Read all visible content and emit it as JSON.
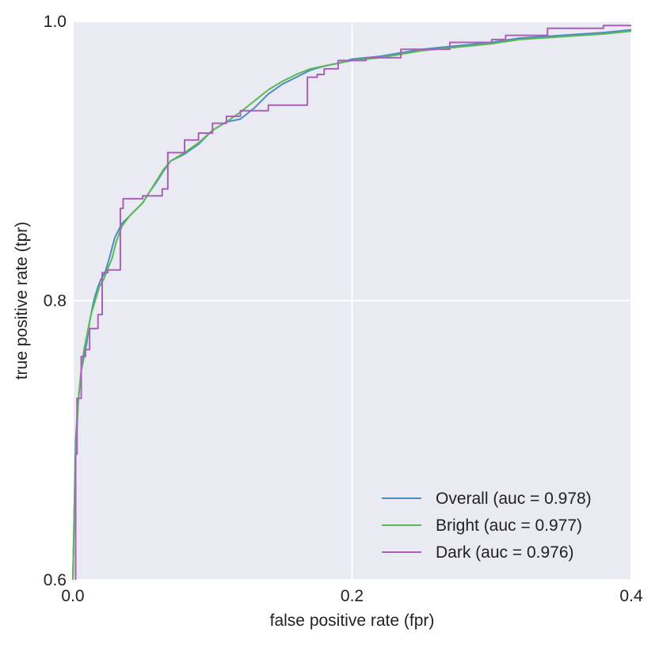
{
  "chart_data": {
    "type": "line",
    "title": "",
    "xlabel": "false positive rate (fpr)",
    "ylabel": "true positive rate (tpr)",
    "xlim": [
      0.0,
      0.4
    ],
    "ylim": [
      0.6,
      1.0
    ],
    "xticks": [
      "0.0",
      "0.2",
      "0.4"
    ],
    "yticks": [
      "0.6",
      "0.8",
      "1.0"
    ],
    "grid": true,
    "background": "#eaeaf2",
    "grid_color": "#ffffff",
    "legend_position": "lower-right",
    "series": [
      {
        "name": "Overall (auc = 0.978)",
        "color": "#4c8cc2",
        "points": [
          [
            0.0,
            0.6
          ],
          [
            0.001,
            0.65
          ],
          [
            0.002,
            0.7
          ],
          [
            0.004,
            0.73
          ],
          [
            0.006,
            0.75
          ],
          [
            0.008,
            0.76
          ],
          [
            0.01,
            0.77
          ],
          [
            0.012,
            0.785
          ],
          [
            0.015,
            0.8
          ],
          [
            0.018,
            0.81
          ],
          [
            0.02,
            0.815
          ],
          [
            0.023,
            0.82
          ],
          [
            0.026,
            0.83
          ],
          [
            0.03,
            0.845
          ],
          [
            0.035,
            0.855
          ],
          [
            0.04,
            0.86
          ],
          [
            0.045,
            0.865
          ],
          [
            0.05,
            0.87
          ],
          [
            0.055,
            0.878
          ],
          [
            0.06,
            0.885
          ],
          [
            0.065,
            0.893
          ],
          [
            0.07,
            0.9
          ],
          [
            0.08,
            0.905
          ],
          [
            0.09,
            0.912
          ],
          [
            0.1,
            0.922
          ],
          [
            0.11,
            0.928
          ],
          [
            0.12,
            0.93
          ],
          [
            0.13,
            0.938
          ],
          [
            0.14,
            0.948
          ],
          [
            0.15,
            0.955
          ],
          [
            0.16,
            0.96
          ],
          [
            0.17,
            0.965
          ],
          [
            0.18,
            0.968
          ],
          [
            0.19,
            0.97
          ],
          [
            0.2,
            0.973
          ],
          [
            0.22,
            0.975
          ],
          [
            0.25,
            0.98
          ],
          [
            0.28,
            0.983
          ],
          [
            0.3,
            0.985
          ],
          [
            0.32,
            0.988
          ],
          [
            0.35,
            0.99
          ],
          [
            0.38,
            0.992
          ],
          [
            0.4,
            0.994
          ]
        ]
      },
      {
        "name": "Bright (auc = 0.977)",
        "color": "#5ab954",
        "points": [
          [
            0.0,
            0.6
          ],
          [
            0.001,
            0.65
          ],
          [
            0.002,
            0.69
          ],
          [
            0.004,
            0.73
          ],
          [
            0.006,
            0.75
          ],
          [
            0.008,
            0.765
          ],
          [
            0.01,
            0.775
          ],
          [
            0.013,
            0.79
          ],
          [
            0.016,
            0.8
          ],
          [
            0.019,
            0.81
          ],
          [
            0.022,
            0.815
          ],
          [
            0.025,
            0.823
          ],
          [
            0.028,
            0.83
          ],
          [
            0.031,
            0.842
          ],
          [
            0.035,
            0.853
          ],
          [
            0.04,
            0.86
          ],
          [
            0.045,
            0.865
          ],
          [
            0.05,
            0.87
          ],
          [
            0.055,
            0.878
          ],
          [
            0.06,
            0.886
          ],
          [
            0.065,
            0.894
          ],
          [
            0.07,
            0.9
          ],
          [
            0.08,
            0.906
          ],
          [
            0.09,
            0.913
          ],
          [
            0.1,
            0.922
          ],
          [
            0.11,
            0.928
          ],
          [
            0.12,
            0.935
          ],
          [
            0.13,
            0.943
          ],
          [
            0.14,
            0.951
          ],
          [
            0.15,
            0.957
          ],
          [
            0.16,
            0.962
          ],
          [
            0.17,
            0.966
          ],
          [
            0.18,
            0.968
          ],
          [
            0.19,
            0.97
          ],
          [
            0.2,
            0.972
          ],
          [
            0.22,
            0.974
          ],
          [
            0.25,
            0.979
          ],
          [
            0.28,
            0.982
          ],
          [
            0.3,
            0.984
          ],
          [
            0.32,
            0.987
          ],
          [
            0.35,
            0.989
          ],
          [
            0.38,
            0.991
          ],
          [
            0.4,
            0.993
          ]
        ]
      },
      {
        "name": "Dark (auc = 0.976)",
        "color": "#a860b8",
        "points": [
          [
            0.002,
            0.6
          ],
          [
            0.002,
            0.69
          ],
          [
            0.003,
            0.69
          ],
          [
            0.003,
            0.73
          ],
          [
            0.006,
            0.73
          ],
          [
            0.006,
            0.76
          ],
          [
            0.009,
            0.76
          ],
          [
            0.009,
            0.765
          ],
          [
            0.012,
            0.765
          ],
          [
            0.012,
            0.78
          ],
          [
            0.018,
            0.78
          ],
          [
            0.018,
            0.79
          ],
          [
            0.021,
            0.79
          ],
          [
            0.021,
            0.82
          ],
          [
            0.025,
            0.82
          ],
          [
            0.025,
            0.822
          ],
          [
            0.034,
            0.822
          ],
          [
            0.034,
            0.866
          ],
          [
            0.036,
            0.866
          ],
          [
            0.036,
            0.873
          ],
          [
            0.05,
            0.873
          ],
          [
            0.05,
            0.875
          ],
          [
            0.064,
            0.875
          ],
          [
            0.064,
            0.88
          ],
          [
            0.068,
            0.88
          ],
          [
            0.068,
            0.906
          ],
          [
            0.08,
            0.906
          ],
          [
            0.08,
            0.915
          ],
          [
            0.09,
            0.915
          ],
          [
            0.09,
            0.92
          ],
          [
            0.1,
            0.92
          ],
          [
            0.1,
            0.927
          ],
          [
            0.11,
            0.927
          ],
          [
            0.11,
            0.932
          ],
          [
            0.12,
            0.932
          ],
          [
            0.12,
            0.936
          ],
          [
            0.14,
            0.936
          ],
          [
            0.14,
            0.94
          ],
          [
            0.168,
            0.94
          ],
          [
            0.168,
            0.96
          ],
          [
            0.175,
            0.96
          ],
          [
            0.175,
            0.962
          ],
          [
            0.18,
            0.962
          ],
          [
            0.18,
            0.966
          ],
          [
            0.19,
            0.966
          ],
          [
            0.19,
            0.972
          ],
          [
            0.21,
            0.972
          ],
          [
            0.21,
            0.974
          ],
          [
            0.235,
            0.974
          ],
          [
            0.235,
            0.98
          ],
          [
            0.27,
            0.98
          ],
          [
            0.27,
            0.985
          ],
          [
            0.3,
            0.985
          ],
          [
            0.3,
            0.987
          ],
          [
            0.31,
            0.987
          ],
          [
            0.31,
            0.99
          ],
          [
            0.34,
            0.99
          ],
          [
            0.34,
            0.995
          ],
          [
            0.38,
            0.995
          ],
          [
            0.38,
            0.997
          ],
          [
            0.4,
            0.997
          ]
        ]
      }
    ]
  }
}
